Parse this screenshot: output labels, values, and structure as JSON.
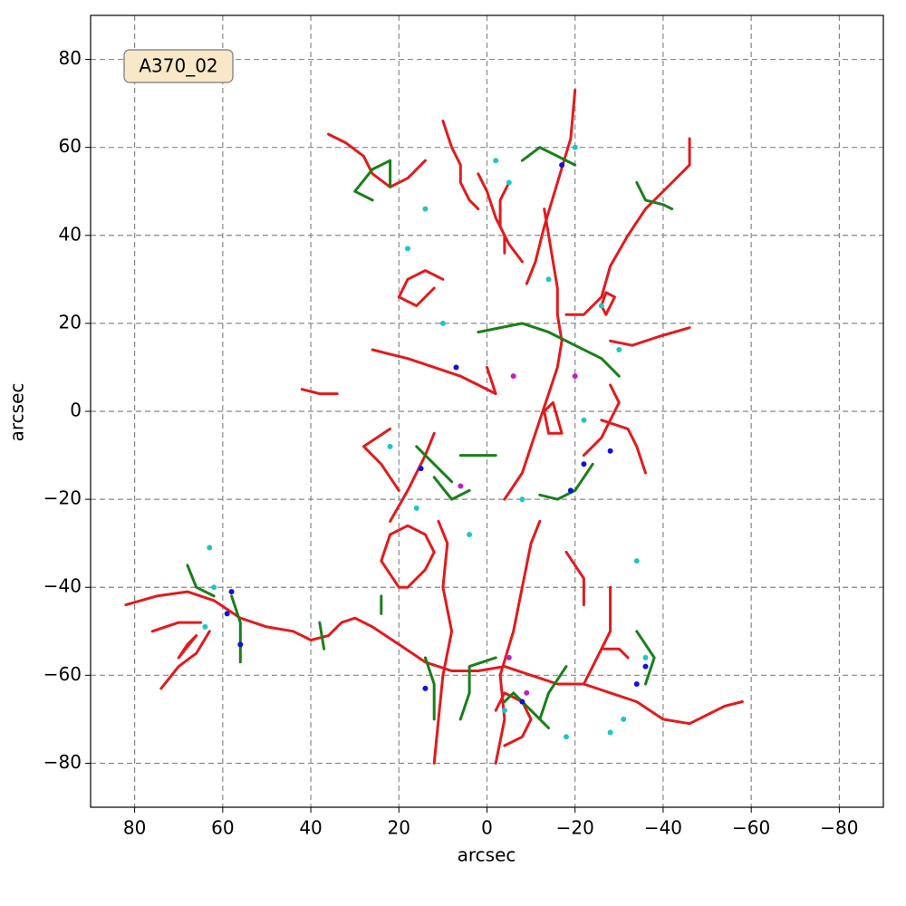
{
  "chart_data": {
    "type": "line",
    "annotation": "A370_02",
    "xlabel": "arcsec",
    "ylabel": "arcsec",
    "xlim": [
      90,
      -90
    ],
    "ylim": [
      -90,
      90
    ],
    "xticks": [
      80,
      60,
      40,
      20,
      0,
      {
        "value": -20,
        "label": "−20"
      },
      {
        "value": -40,
        "label": "−40"
      },
      {
        "value": -60,
        "label": "−60"
      },
      {
        "value": -80,
        "label": "−80"
      }
    ],
    "yticks": [
      {
        "value": -80,
        "label": "−80"
      },
      {
        "value": -60,
        "label": "−60"
      },
      {
        "value": -40,
        "label": "−40"
      },
      {
        "value": -20,
        "label": "−20"
      },
      0,
      20,
      40,
      60,
      80
    ],
    "grid": true,
    "series": [
      {
        "style": "line",
        "color": "#e31a1c",
        "x": [
          82,
          75,
          68,
          62,
          56,
          50,
          44,
          40,
          36,
          33,
          30,
          26,
          20,
          14,
          8,
          2,
          -4,
          -10,
          -16,
          -22,
          -28,
          -34,
          -40,
          -46,
          -50,
          -54,
          -58,
          null,
          -20,
          -19,
          -16,
          -13,
          -11,
          -9,
          null,
          -46,
          -46,
          -42,
          -36,
          -32,
          -28,
          -26,
          -22,
          -18,
          null,
          36,
          32,
          28,
          26,
          22,
          18,
          14,
          null,
          10,
          8,
          6,
          6,
          4,
          2,
          null,
          -5,
          -3,
          -3,
          -5,
          -8,
          null,
          -14,
          -13,
          -15,
          -17,
          -14,
          null,
          -28,
          -33,
          -39,
          -46,
          null,
          42,
          38,
          34,
          null,
          26,
          22,
          18,
          12,
          6,
          2,
          -2,
          0,
          null,
          -27,
          -29,
          -27,
          -26,
          -27,
          null,
          12,
          11,
          10,
          8,
          10,
          9,
          11,
          null,
          -2,
          -4,
          -3,
          -6,
          -8,
          -10,
          -12,
          null,
          -28,
          -28,
          -24,
          null,
          74,
          70,
          66,
          63,
          null,
          76,
          70,
          65,
          null,
          70,
          66,
          68,
          70,
          null,
          20,
          24,
          28,
          22,
          null,
          22,
          18,
          14,
          12,
          null,
          -36,
          -34,
          -32,
          -26,
          null,
          -18,
          -22,
          -22,
          null,
          -4,
          -8,
          -10,
          -12,
          -14,
          -16,
          -17,
          -16,
          -16,
          -15,
          -14,
          -13,
          null,
          18,
          14,
          12,
          14,
          18,
          22,
          24,
          20,
          18,
          null,
          -32,
          -30,
          -26,
          -24,
          -22,
          null,
          2,
          0,
          -2,
          -4,
          -4,
          null,
          10,
          14,
          18,
          20,
          16,
          12,
          null,
          -22,
          -26,
          -28,
          -30,
          -28,
          null,
          -4,
          -8,
          -10,
          -8,
          -4,
          -2
        ],
        "y": [
          -44,
          -42,
          -41,
          -43,
          -47,
          -49,
          -50,
          -52,
          -51,
          -48,
          -47,
          -49,
          -53,
          -57,
          -59,
          -59,
          -58,
          -60,
          -62,
          -62,
          -64,
          -66,
          -70,
          -71,
          -69,
          -67,
          -66,
          null,
          73,
          62,
          52,
          42,
          34,
          29,
          null,
          62,
          56,
          52,
          46,
          40,
          33,
          26,
          22,
          22,
          null,
          63,
          61,
          58,
          54,
          51,
          53,
          57,
          null,
          66,
          60,
          56,
          52,
          48,
          46,
          null,
          52,
          48,
          42,
          38,
          34,
          null,
          -5,
          0,
          2,
          -5,
          -5,
          null,
          16,
          15,
          17,
          19,
          null,
          5,
          4,
          4,
          null,
          14,
          13,
          12,
          10,
          8,
          6,
          4,
          10,
          null,
          22,
          26,
          27,
          24,
          22,
          null,
          -80,
          -70,
          -60,
          -50,
          -40,
          -30,
          -25,
          null,
          -80,
          -70,
          -60,
          -50,
          -40,
          -30,
          -25,
          null,
          -40,
          -50,
          -58,
          null,
          -63,
          -58,
          -55,
          -50,
          null,
          -50,
          -48,
          -48,
          null,
          -56,
          -51,
          -53,
          -56,
          null,
          -18,
          -12,
          -8,
          -4,
          null,
          -25,
          -18,
          -10,
          -5,
          null,
          -14,
          -8,
          -4,
          -2,
          null,
          -32,
          -38,
          -44,
          null,
          -20,
          -14,
          -8,
          -2,
          4,
          10,
          16,
          22,
          28,
          34,
          40,
          46,
          null,
          -40,
          -36,
          -32,
          -28,
          -26,
          -28,
          -34,
          -40,
          -40,
          null,
          -56,
          -54,
          -54,
          -58,
          -62,
          null,
          54,
          50,
          44,
          40,
          36,
          null,
          30,
          32,
          30,
          26,
          24,
          28,
          null,
          -10,
          -6,
          -2,
          2,
          6,
          null,
          -76,
          -74,
          -70,
          -66,
          -64,
          -68
        ]
      },
      {
        "style": "line",
        "color": "#1a7f1a",
        "x": [
          26,
          30,
          26,
          22,
          22,
          null,
          -8,
          -12,
          -16,
          -20,
          null,
          -34,
          -36,
          -40,
          -42,
          null,
          2,
          -8,
          -14,
          -20,
          -26,
          -30,
          null,
          6,
          4,
          -2,
          null,
          12,
          8,
          4,
          null,
          -12,
          -16,
          -20,
          -24,
          null,
          14,
          12,
          12,
          null,
          6,
          4,
          4,
          -2,
          null,
          -18,
          -14,
          -12,
          null,
          62,
          66,
          68,
          null,
          58,
          56,
          56,
          null,
          38,
          37,
          null,
          24,
          24,
          null,
          -34,
          -38,
          -36,
          null,
          16,
          12,
          8,
          null,
          -4,
          -6,
          -10,
          -14
        ],
        "y": [
          48,
          50,
          55,
          57,
          51,
          null,
          57,
          60,
          58,
          56,
          null,
          52,
          48,
          47,
          46,
          null,
          18,
          20,
          18,
          15,
          12,
          8,
          null,
          -10,
          -10,
          -10,
          null,
          -15,
          -20,
          -18,
          null,
          -19,
          -20,
          -18,
          -12,
          null,
          -56,
          -62,
          -70,
          null,
          -70,
          -64,
          -58,
          -56,
          null,
          -58,
          -64,
          -70,
          null,
          -42,
          -40,
          -35,
          null,
          -42,
          -48,
          -57,
          null,
          -48,
          -54,
          null,
          -42,
          -46,
          null,
          -50,
          -56,
          -62,
          null,
          -8,
          -12,
          -16,
          null,
          -66,
          -64,
          -68,
          -72
        ]
      },
      {
        "style": "points",
        "color": "#22c4c4",
        "x": [
          -2,
          -5,
          -14,
          -20,
          -26,
          14,
          18,
          10,
          -30,
          -36,
          -31,
          -18,
          -8,
          4,
          -22,
          63,
          62,
          64,
          22,
          16,
          -4,
          -28,
          -34
        ],
        "y": [
          57,
          52,
          30,
          60,
          24,
          46,
          37,
          20,
          14,
          -56,
          -70,
          -74,
          -20,
          -28,
          -2,
          -31,
          -40,
          -49,
          -8,
          -22,
          -68,
          -73,
          -34
        ]
      },
      {
        "style": "points",
        "color": "#1010e0",
        "x": [
          -17,
          -36,
          -34,
          7,
          15,
          58,
          59,
          56,
          -28,
          -22,
          -19,
          -8,
          14
        ],
        "y": [
          56,
          -58,
          -62,
          10,
          -13,
          -41,
          -46,
          -53,
          -9,
          -12,
          -18,
          -66,
          -63
        ]
      },
      {
        "style": "points",
        "color": "#c020c0",
        "x": [
          -5,
          -20,
          -6,
          6,
          -9
        ],
        "y": [
          -56,
          8,
          8,
          -17,
          -64
        ]
      }
    ]
  }
}
